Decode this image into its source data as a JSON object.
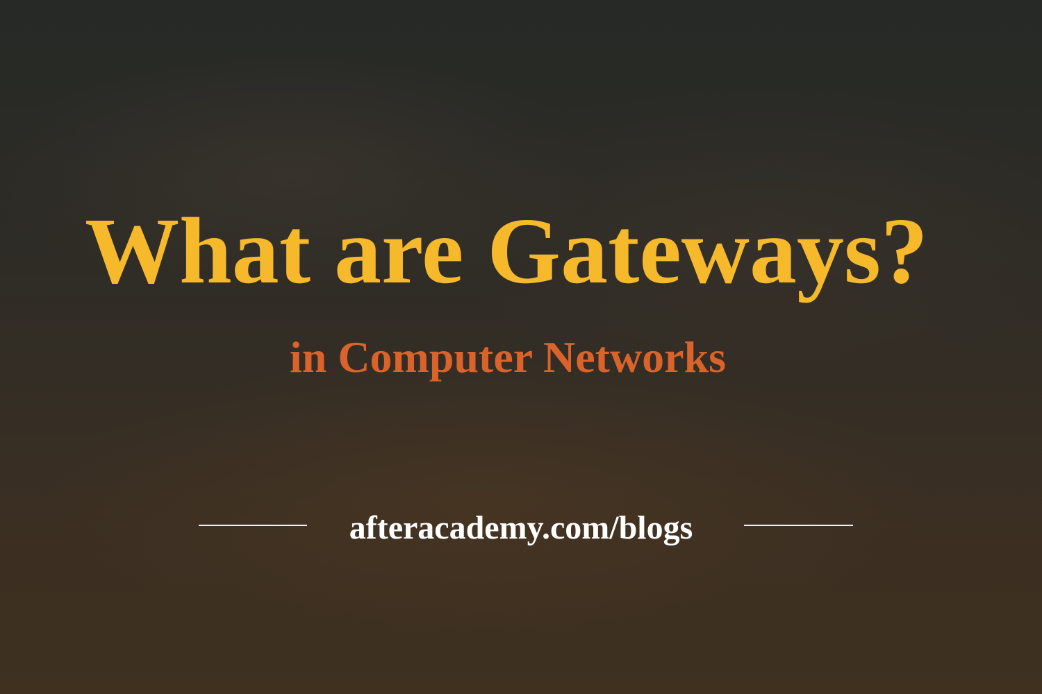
{
  "banner": {
    "title": "What are Gateways?",
    "subtitle": "in Computer Networks",
    "website": "afteracademy.com/blogs"
  },
  "colors": {
    "title": "#f6b92b",
    "subtitle": "#d9632a",
    "website": "#ffffff",
    "rules": "#f2f2f2",
    "background_top": "#262926",
    "background_bottom": "#3f3020"
  }
}
